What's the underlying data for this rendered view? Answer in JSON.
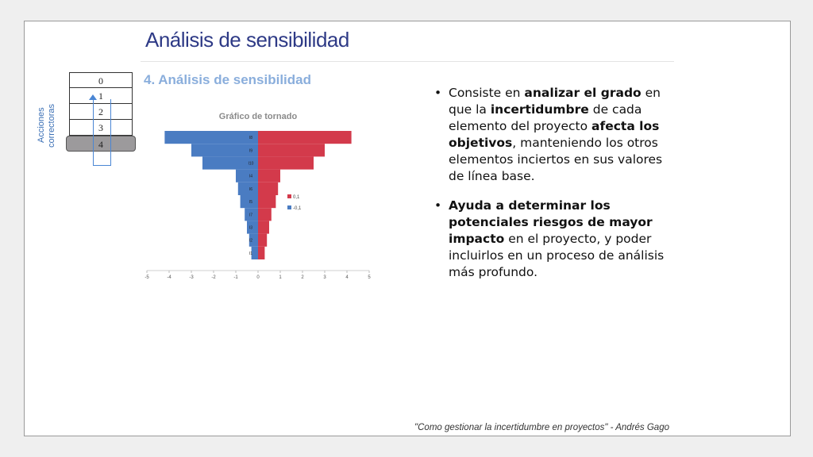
{
  "slide": {
    "title": "Análisis de sensibilidad",
    "side_label": "Acciones correctoras",
    "steps": [
      "0",
      "1",
      "2",
      "3",
      "4"
    ],
    "active_step": "4",
    "section_heading": "4. Análisis de sensibilidad",
    "footer": "\"Como gestionar la incertidumbre en proyectos\" - Andrés Gago",
    "colors": {
      "title": "#2e3a86",
      "heading": "#8aaedc",
      "positive": "#d33a4b",
      "negative": "#4a7cc2"
    }
  },
  "bullets": [
    [
      {
        "text": "Consiste en ",
        "bold": false
      },
      {
        "text": "analizar el grado",
        "bold": true
      },
      {
        "text": " en que la ",
        "bold": false
      },
      {
        "text": "incertidumbre",
        "bold": true
      },
      {
        "text": " de cada elemento del proyecto ",
        "bold": false
      },
      {
        "text": "afecta los objetivos",
        "bold": true
      },
      {
        "text": ", manteniendo los otros elementos inciertos en sus valores de línea base.",
        "bold": false
      }
    ],
    [
      {
        "text": "Ayuda a determinar los potenciales riesgos de mayor impacto",
        "bold": true
      },
      {
        "text": " en el proyecto, y poder incluirlos en un proceso de análisis más profundo.",
        "bold": false
      }
    ]
  ],
  "chart_data": {
    "type": "bar",
    "orientation": "horizontal",
    "title": "Gráfico de tornado",
    "categories": [
      "I8",
      "I9",
      "I10",
      "I4",
      "I6",
      "I5",
      "I7",
      "I3",
      "I2",
      "I1"
    ],
    "series": [
      {
        "name": "0,1",
        "color": "#d33a4b",
        "values": [
          4.2,
          3.0,
          2.5,
          1.0,
          0.9,
          0.8,
          0.6,
          0.5,
          0.4,
          0.3
        ]
      },
      {
        "name": "-0,1",
        "color": "#4a7cc2",
        "values": [
          -4.2,
          -3.0,
          -2.5,
          -1.0,
          -0.9,
          -0.8,
          -0.6,
          -0.5,
          -0.4,
          -0.3
        ]
      }
    ],
    "xlim": [
      -5,
      5
    ],
    "xticks": [
      "-5",
      "-4",
      "-3",
      "-2",
      "-1",
      "0",
      "1",
      "2",
      "3",
      "4",
      "5"
    ],
    "legend": "right",
    "grid": false
  }
}
